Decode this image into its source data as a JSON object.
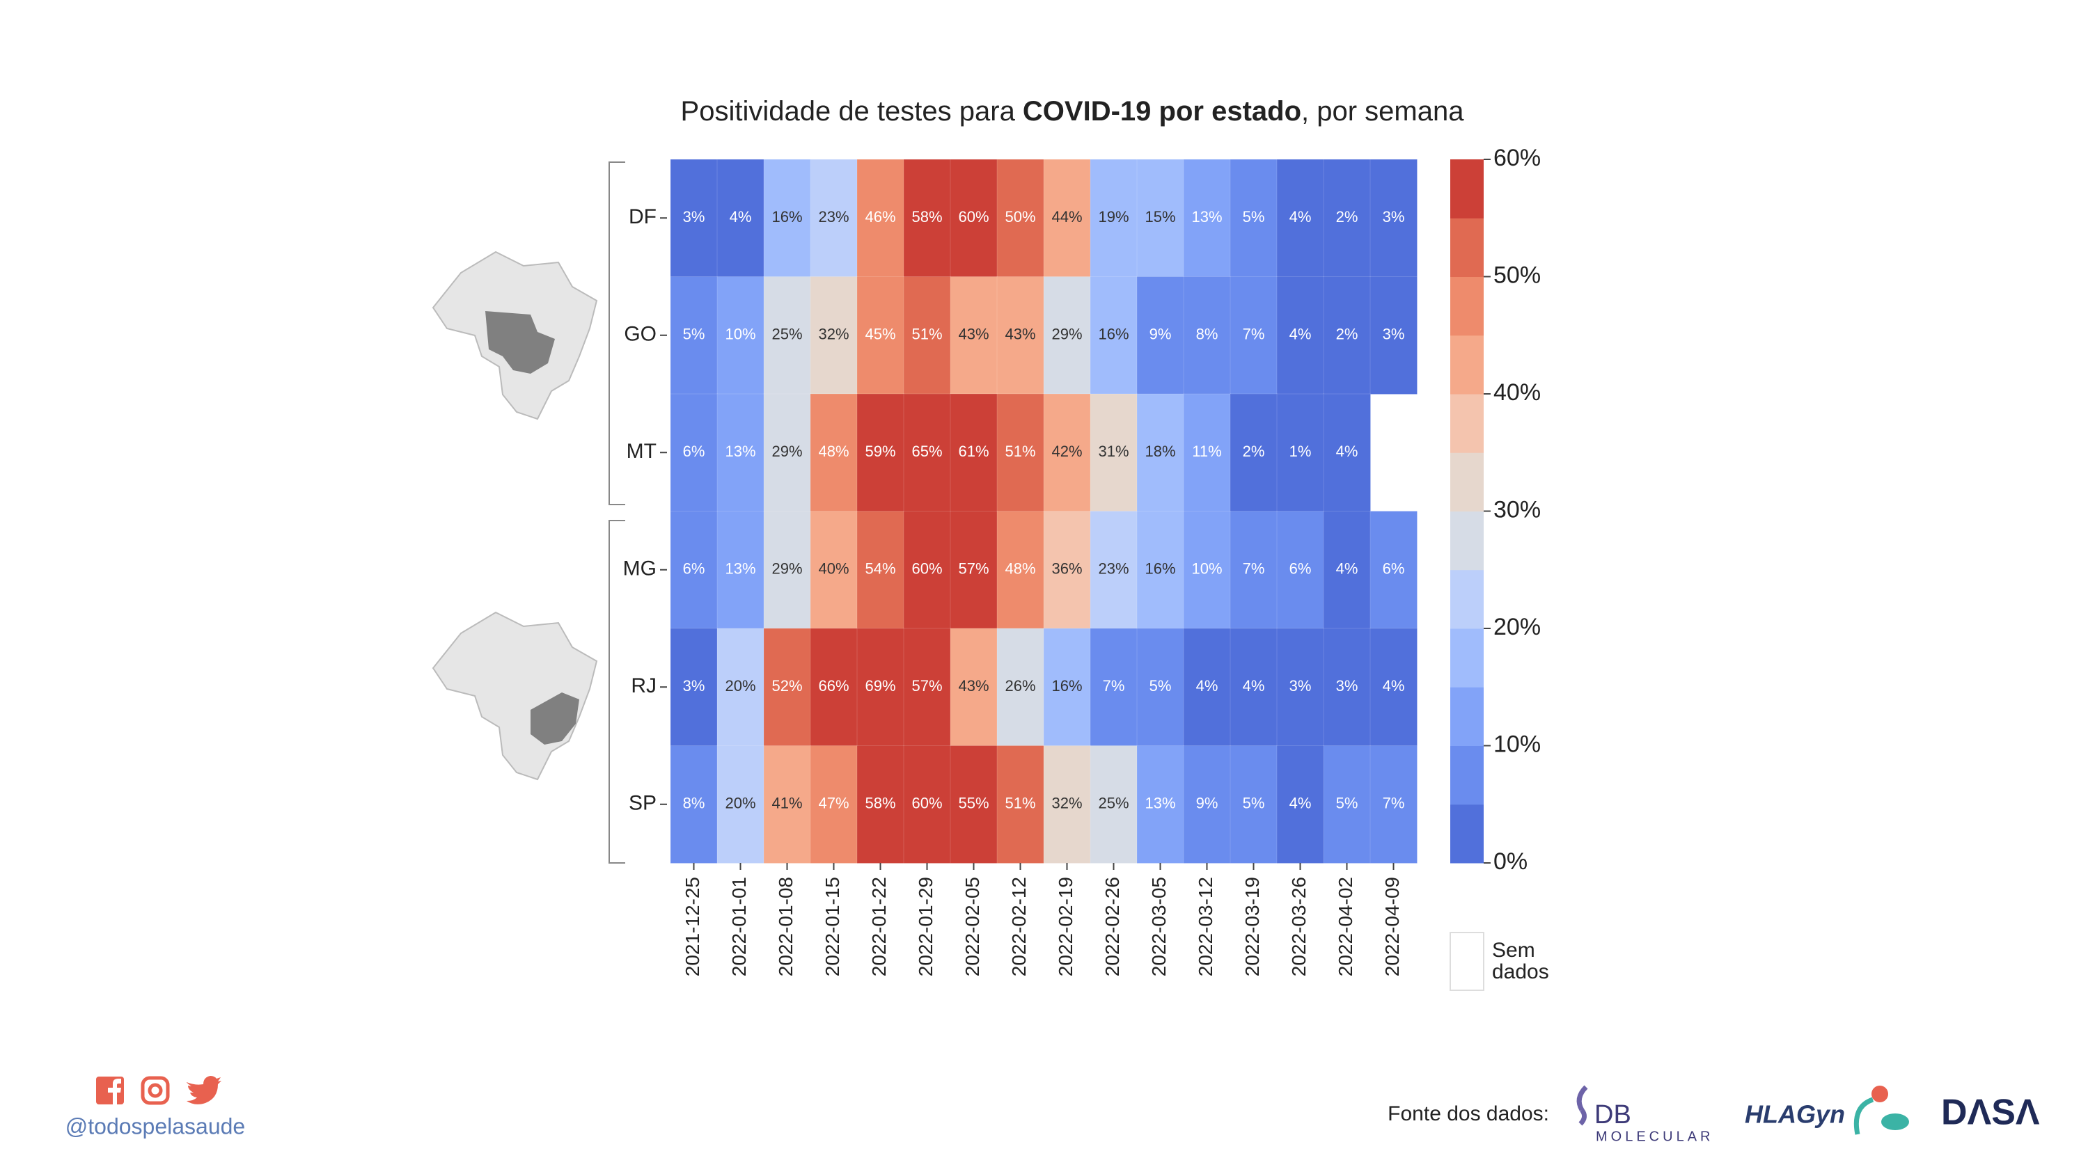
{
  "chart_data": {
    "type": "heatmap",
    "title_parts": [
      {
        "text": "Positividade de testes para ",
        "bold": false
      },
      {
        "text": "COVID-19 por estado",
        "bold": true
      },
      {
        "text": ", por semana",
        "bold": false
      }
    ],
    "rows": [
      "DF",
      "GO",
      "MT",
      "MG",
      "RJ",
      "SP"
    ],
    "groups": [
      [
        0,
        2
      ],
      [
        3,
        5
      ]
    ],
    "categories": [
      "2021-12-25",
      "2022-01-01",
      "2022-01-08",
      "2022-01-15",
      "2022-01-22",
      "2022-01-29",
      "2022-02-05",
      "2022-02-12",
      "2022-02-19",
      "2022-02-26",
      "2022-03-05",
      "2022-03-12",
      "2022-03-19",
      "2022-03-26",
      "2022-04-02",
      "2022-04-09"
    ],
    "values": [
      [
        3,
        4,
        16,
        23,
        46,
        58,
        60,
        50,
        44,
        19,
        15,
        13,
        5,
        4,
        2,
        3
      ],
      [
        5,
        10,
        25,
        32,
        45,
        51,
        43,
        43,
        29,
        16,
        9,
        8,
        7,
        4,
        2,
        3
      ],
      [
        6,
        13,
        29,
        48,
        59,
        65,
        61,
        51,
        42,
        31,
        18,
        11,
        2,
        1,
        4,
        null
      ],
      [
        6,
        13,
        29,
        40,
        54,
        60,
        57,
        48,
        36,
        23,
        16,
        10,
        7,
        6,
        4,
        6
      ],
      [
        3,
        20,
        52,
        66,
        69,
        57,
        43,
        26,
        16,
        7,
        5,
        4,
        4,
        3,
        3,
        4
      ],
      [
        8,
        20,
        41,
        47,
        58,
        60,
        55,
        51,
        32,
        25,
        13,
        9,
        5,
        4,
        5,
        7
      ]
    ],
    "value_labels": [
      [
        "3%",
        "4%",
        "16%",
        "23%",
        "46%",
        "58%",
        "60%",
        "50%",
        "44%",
        "19%",
        "15%",
        "13%",
        "5%",
        "4%",
        "2%",
        "3%"
      ],
      [
        "5%",
        "10%",
        "25%",
        "32%",
        "45%",
        "51%",
        "43%",
        "43%",
        "29%",
        "16%",
        "9%",
        "8%",
        "7%",
        "4%",
        "2%",
        "3%"
      ],
      [
        "6%",
        "13%",
        "29%",
        "48%",
        "59%",
        "65%",
        "61%",
        "51%",
        "42%",
        "31%",
        "18%",
        "11%",
        "2%",
        "1%",
        "4%",
        null
      ],
      [
        "6%",
        "13%",
        "29%",
        "40%",
        "54%",
        "60%",
        "57%",
        "48%",
        "36%",
        "23%",
        "16%",
        "10%",
        "7%",
        "6%",
        "4%",
        "6%"
      ],
      [
        "3%",
        "20%",
        "52%",
        "66%",
        "69%",
        "57%",
        "43%",
        "26%",
        "16%",
        "7%",
        "5%",
        "4%",
        "4%",
        "3%",
        "3%",
        "4%"
      ],
      [
        "8%",
        "20%",
        "41%",
        "47%",
        "58%",
        "60%",
        "55%",
        "51%",
        "32%",
        "25%",
        "13%",
        "9%",
        "5%",
        "4%",
        "5%",
        "7%"
      ]
    ],
    "zlim": [
      0,
      60
    ],
    "zticks": [
      {
        "value": 0,
        "label": "0%"
      },
      {
        "value": 10,
        "label": "10%"
      },
      {
        "value": 20,
        "label": "20%"
      },
      {
        "value": 30,
        "label": "30%"
      },
      {
        "value": 40,
        "label": "40%"
      },
      {
        "value": 50,
        "label": "50%"
      },
      {
        "value": 60,
        "label": "60%"
      }
    ],
    "colors": [
      "#5170db",
      "#6a8cee",
      "#82a3f8",
      "#a0bcfc",
      "#bccffa",
      "#d6dce6",
      "#e6d7cd",
      "#f4c4ae",
      "#f5a98a",
      "#ee8b6c",
      "#e06a52",
      "#cc4037"
    ],
    "missing_label": [
      "Sem",
      "dados"
    ]
  },
  "footer": {
    "handle": "@todospelasaude",
    "source_label": "Fonte dos dados:",
    "logos": {
      "db": "DB",
      "db_sub": "MOLECULAR",
      "hla": "HLAGyn",
      "dasa": "DΛSΛ"
    }
  }
}
